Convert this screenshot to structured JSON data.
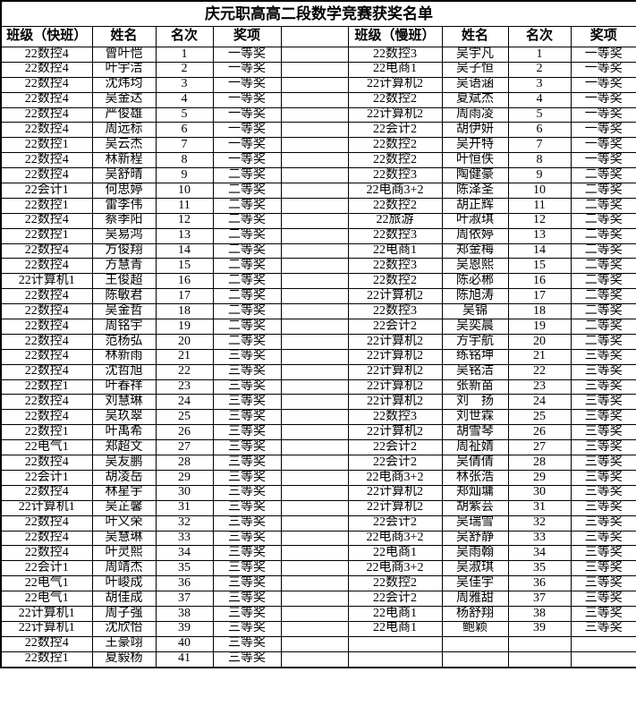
{
  "title": "庆元职高高二段数学竞赛获奖名单",
  "colors": {
    "border": "#000000",
    "text": "#000000",
    "background": "#ffffff"
  },
  "table": {
    "left_headers": [
      "班级（快班）",
      "姓名",
      "名次",
      "奖项"
    ],
    "right_headers": [
      "班级（慢班）",
      "姓名",
      "名次",
      "奖项"
    ],
    "rows": [
      [
        "22数控4",
        "曾叶恺",
        "1",
        "一等奖",
        "22数控3",
        "吴宇凡",
        "1",
        "一等奖"
      ],
      [
        "22数控4",
        "叶宇洁",
        "2",
        "一等奖",
        "22电商1",
        "吴子恒",
        "2",
        "一等奖"
      ],
      [
        "22数控4",
        "沈炜均",
        "3",
        "一等奖",
        "22计算机2",
        "吴语涵",
        "3",
        "一等奖"
      ],
      [
        "22数控4",
        "吴金达",
        "4",
        "一等奖",
        "22数控2",
        "夏斌杰",
        "4",
        "一等奖"
      ],
      [
        "22数控4",
        "严俊雄",
        "5",
        "一等奖",
        "22计算机2",
        "周雨凌",
        "5",
        "一等奖"
      ],
      [
        "22数控4",
        "周远标",
        "6",
        "一等奖",
        "22会计2",
        "胡伊妍",
        "6",
        "一等奖"
      ],
      [
        "22数控1",
        "吴云杰",
        "7",
        "一等奖",
        "22数控2",
        "吴开特",
        "7",
        "一等奖"
      ],
      [
        "22数控4",
        "林新程",
        "8",
        "一等奖",
        "22数控2",
        "叶恒佚",
        "8",
        "一等奖"
      ],
      [
        "22数控4",
        "吴舒晴",
        "9",
        "二等奖",
        "22数控3",
        "陶健豪",
        "9",
        "二等奖"
      ],
      [
        "22会计1",
        "何思婷",
        "10",
        "二等奖",
        "22电商3+2",
        "陈泽圣",
        "10",
        "二等奖"
      ],
      [
        "22数控1",
        "雷李伟",
        "11",
        "二等奖",
        "22数控2",
        "胡正辉",
        "11",
        "二等奖"
      ],
      [
        "22数控4",
        "蔡季阳",
        "12",
        "二等奖",
        "22旅游",
        "叶淑琪",
        "12",
        "二等奖"
      ],
      [
        "22数控1",
        "吴易鸿",
        "13",
        "二等奖",
        "22数控3",
        "周依婷",
        "13",
        "二等奖"
      ],
      [
        "22数控4",
        "方俊翔",
        "14",
        "二等奖",
        "22电商1",
        "郑金梅",
        "14",
        "二等奖"
      ],
      [
        "22数控4",
        "方慧青",
        "15",
        "二等奖",
        "22数控3",
        "吴恩熙",
        "15",
        "二等奖"
      ],
      [
        "22计算机1",
        "王俊超",
        "16",
        "二等奖",
        "22数控2",
        "陈必郴",
        "16",
        "二等奖"
      ],
      [
        "22数控4",
        "陈敏君",
        "17",
        "二等奖",
        "22计算机2",
        "陈旭涛",
        "17",
        "二等奖"
      ],
      [
        "22数控4",
        "吴金哲",
        "18",
        "二等奖",
        "22数控3",
        "吴锦",
        "18",
        "二等奖"
      ],
      [
        "22数控4",
        "周铭宇",
        "19",
        "二等奖",
        "22会计2",
        "吴奕晨",
        "19",
        "二等奖"
      ],
      [
        "22数控4",
        "范杨弘",
        "20",
        "二等奖",
        "22计算机2",
        "方宇航",
        "20",
        "二等奖"
      ],
      [
        "22数控4",
        "林新雨",
        "21",
        "三等奖",
        "22计算机2",
        "练铭坤",
        "21",
        "三等奖"
      ],
      [
        "22数控4",
        "沈哲旭",
        "22",
        "三等奖",
        "22计算机2",
        "吴铭洁",
        "22",
        "三等奖"
      ],
      [
        "22数控1",
        "叶春祥",
        "23",
        "三等奖",
        "22计算机2",
        "张新苗",
        "23",
        "三等奖"
      ],
      [
        "22数控4",
        "刘慧琳",
        "24",
        "三等奖",
        "22计算机2",
        "刘　扬",
        "24",
        "三等奖"
      ],
      [
        "22数控4",
        "吴玖翠",
        "25",
        "三等奖",
        "22数控3",
        "刘世霖",
        "25",
        "三等奖"
      ],
      [
        "22数控1",
        "叶禹希",
        "26",
        "三等奖",
        "22计算机2",
        "胡雪琴",
        "26",
        "三等奖"
      ],
      [
        "22电气1",
        "郑超文",
        "27",
        "三等奖",
        "22会计2",
        "周祉婧",
        "27",
        "三等奖"
      ],
      [
        "22数控4",
        "吴友鹏",
        "28",
        "三等奖",
        "22会计2",
        "吴倩倩",
        "28",
        "三等奖"
      ],
      [
        "22会计1",
        "胡凌岳",
        "29",
        "三等奖",
        "22电商3+2",
        "林张浩",
        "29",
        "三等奖"
      ],
      [
        "22数控4",
        "林星宇",
        "30",
        "三等奖",
        "22计算机2",
        "郑灿墉",
        "30",
        "三等奖"
      ],
      [
        "22计算机1",
        "吴芷馨",
        "31",
        "三等奖",
        "22计算机2",
        "胡紫芸",
        "31",
        "三等奖"
      ],
      [
        "22数控4",
        "叶义荣",
        "32",
        "三等奖",
        "22会计2",
        "吴瑞雪",
        "32",
        "三等奖"
      ],
      [
        "22数控4",
        "吴慧琳",
        "33",
        "三等奖",
        "22电商3+2",
        "吴舒静",
        "33",
        "三等奖"
      ],
      [
        "22数控4",
        "叶灵熙",
        "34",
        "三等奖",
        "22电商1",
        "吴雨翰",
        "34",
        "三等奖"
      ],
      [
        "22会计1",
        "周靖杰",
        "35",
        "三等奖",
        "22电商3+2",
        "吴淑琪",
        "35",
        "三等奖"
      ],
      [
        "22电气1",
        "叶峻成",
        "36",
        "三等奖",
        "22数控2",
        "吴佳宇",
        "36",
        "三等奖"
      ],
      [
        "22电气1",
        "胡佳成",
        "37",
        "三等奖",
        "22会计2",
        "周雅甜",
        "37",
        "三等奖"
      ],
      [
        "22计算机1",
        "周子强",
        "38",
        "三等奖",
        "22电商1",
        "杨舒翔",
        "38",
        "三等奖"
      ],
      [
        "22计算机1",
        "沈欣怡",
        "39",
        "三等奖",
        "22电商1",
        "鲍颖",
        "39",
        "三等奖"
      ],
      [
        "22数控4",
        "王豪翊",
        "40",
        "三等奖",
        "",
        "",
        "",
        ""
      ],
      [
        "22数控1",
        "夏毅杨",
        "41",
        "三等奖",
        "",
        "",
        "",
        ""
      ]
    ]
  }
}
